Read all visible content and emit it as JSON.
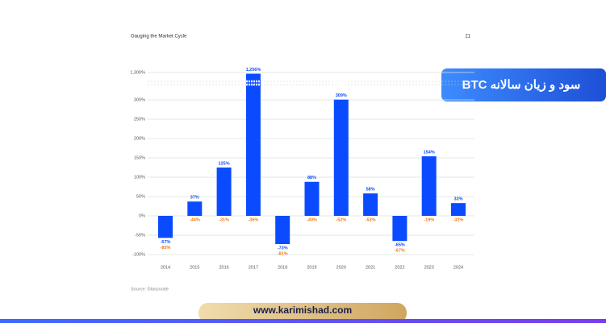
{
  "header": {
    "title": "Gauging the Market Cycle",
    "page": "21"
  },
  "badge": "سود و زیان سالانه BTC",
  "website": "www.karimishad.com",
  "chart_data": {
    "type": "bar",
    "categories": [
      "2014",
      "2015",
      "2016",
      "2017",
      "2018",
      "2019",
      "2020",
      "2021",
      "2022",
      "2023",
      "2024"
    ],
    "series": [
      {
        "color": "#0a4bff",
        "values": [
          -57,
          37,
          125,
          1256,
          -73,
          88,
          309,
          58,
          -65,
          154,
          33
        ],
        "value_labels": [
          "-57%",
          "37%",
          "125%",
          "1,256%",
          "-73%",
          "88%",
          "309%",
          "58%",
          "-65%",
          "154%",
          "33%"
        ]
      },
      {
        "color": "#f07a1a",
        "values": [
          -85,
          -44,
          -31,
          -36,
          -81,
          -40,
          -52,
          -53,
          -67,
          -19,
          -32
        ],
        "value_labels": [
          "-85%",
          "-44%",
          "-31%",
          "-36%",
          "-81%",
          "-40%",
          "-52%",
          "-53%",
          "-67%",
          "-19%",
          "-32%"
        ]
      }
    ],
    "ylim": [
      -100,
      1300
    ],
    "yticks": [
      {
        "value": -100,
        "label": "-100%"
      },
      {
        "value": -50,
        "label": "-50%"
      },
      {
        "value": 0,
        "label": "0%"
      },
      {
        "value": 50,
        "label": "50%"
      },
      {
        "value": 100,
        "label": "100%"
      },
      {
        "value": 150,
        "label": "150%"
      },
      {
        "value": 200,
        "label": "200%"
      },
      {
        "value": 250,
        "label": "250%"
      },
      {
        "value": 300,
        "label": "300%"
      },
      {
        "value": 1300,
        "label": "1,300%"
      }
    ],
    "grid": true,
    "source": "Source: Glassnode"
  }
}
